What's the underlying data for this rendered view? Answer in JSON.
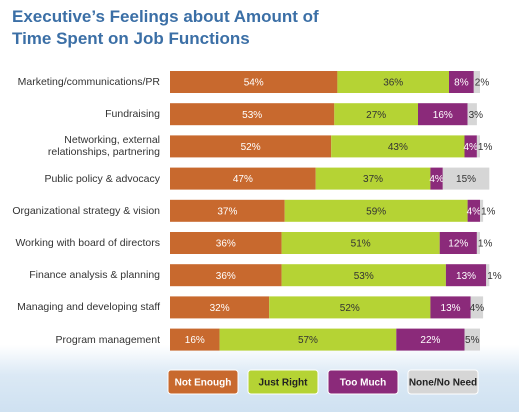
{
  "chart_data": {
    "type": "stacked-bar-horizontal",
    "title": "Executive’s Feelings about Amount of Time Spent on Job Functions",
    "categories": [
      "Marketing/communications/PR",
      "Fundraising",
      "Networking, external\nrelationships, partnering",
      "Public policy & advocacy",
      "Organizational strategy & vision",
      "Working with board of directors",
      "Finance analysis & planning",
      "Managing and developing staff",
      "Program management"
    ],
    "xlim": [
      0,
      100
    ],
    "series": [
      {
        "name": "Not Enough",
        "color": "#c8692e",
        "values": [
          54,
          53,
          52,
          47,
          37,
          36,
          36,
          32,
          16
        ],
        "value_labels": [
          "54%",
          "53%",
          "52%",
          "47%",
          "37%",
          "36%",
          "36%",
          "32%",
          "16%"
        ]
      },
      {
        "name": "Just Right",
        "color": "#b5d334",
        "values": [
          36,
          27,
          43,
          37,
          59,
          51,
          53,
          52,
          57
        ],
        "value_labels": [
          "36%",
          "27%",
          "43%",
          "37%",
          "59%",
          "51%",
          "53%",
          "52%",
          "57%"
        ]
      },
      {
        "name": "Too Much",
        "color": "#8b2a7a",
        "values": [
          8,
          16,
          4,
          4,
          4,
          12,
          13,
          13,
          22
        ],
        "value_labels": [
          "8%",
          "16%",
          "4%",
          "4%",
          "4%",
          "12%",
          "13%",
          "13%",
          "22%"
        ]
      },
      {
        "name": "None/No Need",
        "color": "#d6d6d6",
        "values": [
          2,
          3,
          1,
          15,
          1,
          1,
          1,
          4,
          5
        ],
        "value_labels": [
          "2%",
          "3%",
          "1%",
          "15%",
          "1%",
          "1%",
          "1%",
          "4%",
          "5%"
        ]
      }
    ]
  }
}
